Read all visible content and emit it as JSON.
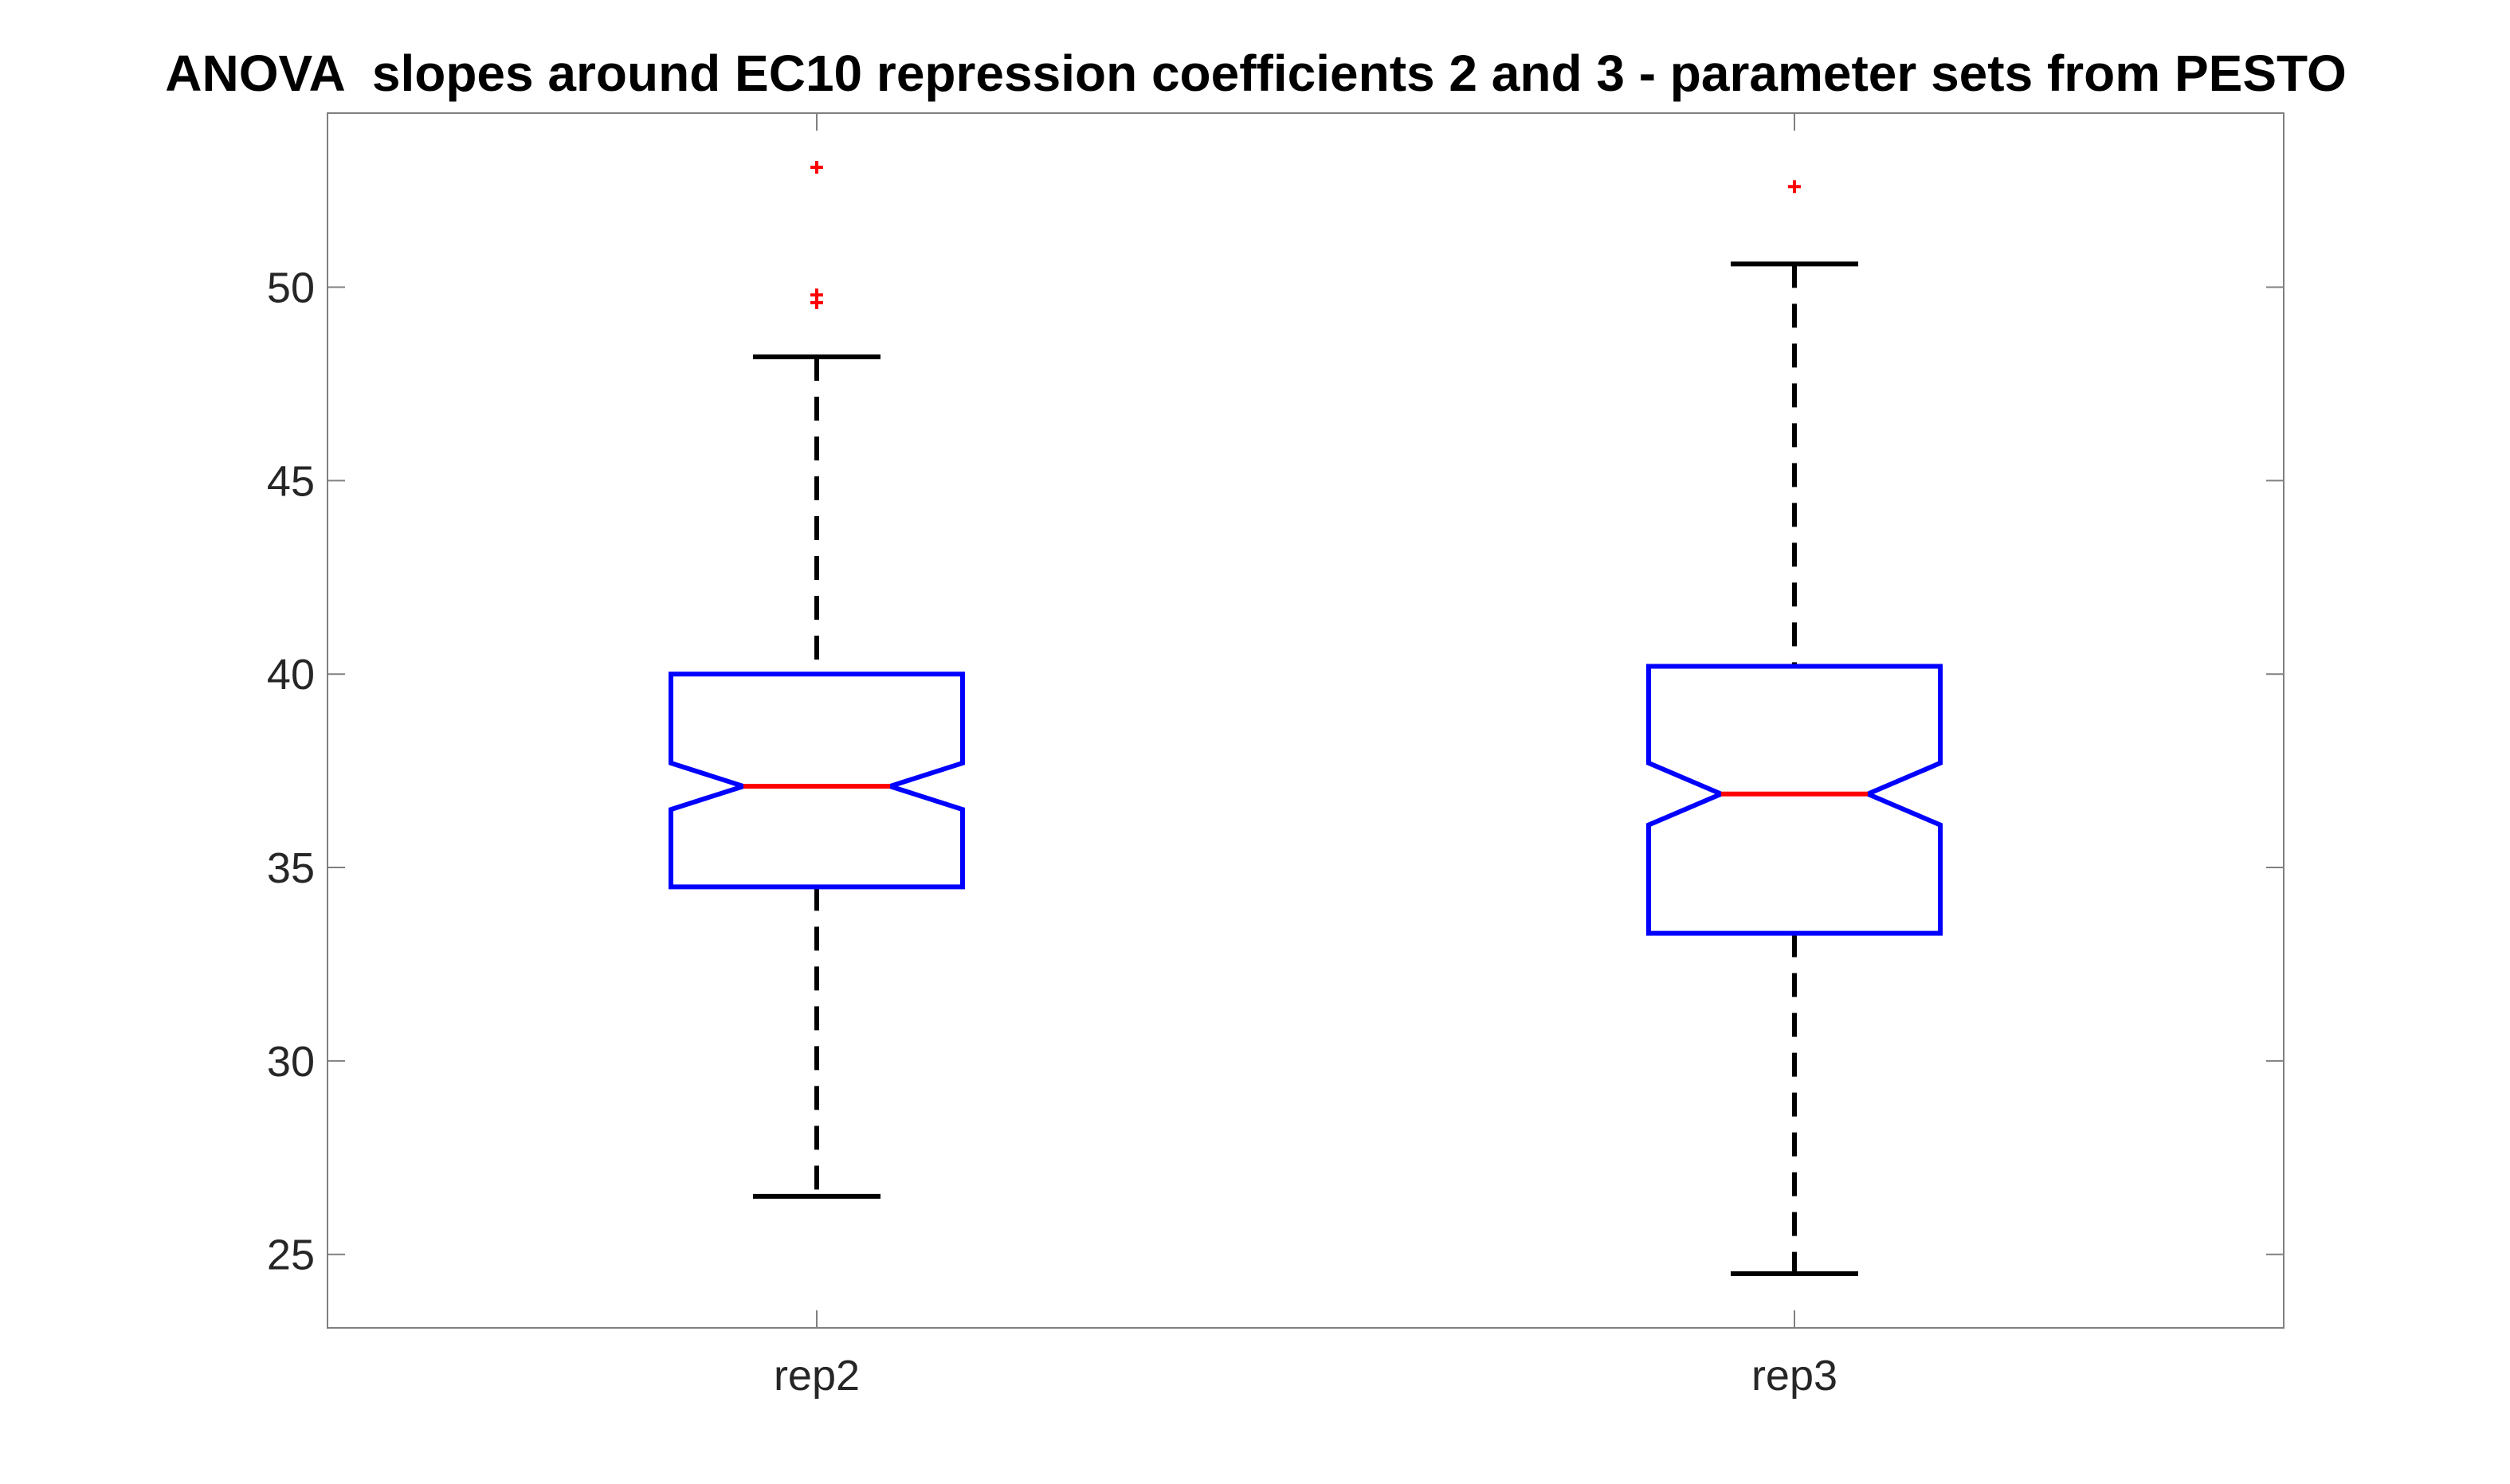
{
  "chart_data": {
    "type": "boxplot",
    "title": "ANOVA  slopes around EC10 repression coefficients 2 and 3 - parameter sets from PESTO",
    "xlabel": "",
    "ylabel": "",
    "ylim": [
      23.1,
      54.5
    ],
    "yticks": [
      25,
      30,
      35,
      40,
      45,
      50
    ],
    "categories": [
      "rep2",
      "rep3"
    ],
    "notched": true,
    "grid": false,
    "boxes": [
      {
        "category": "rep2",
        "lower_whisker": 26.5,
        "q1": 34.5,
        "notch_low": 36.5,
        "median": 37.1,
        "notch_high": 37.7,
        "q3": 40.0,
        "upper_whisker": 48.2,
        "outliers": [
          49.6,
          49.8,
          53.1
        ]
      },
      {
        "category": "rep3",
        "lower_whisker": 24.5,
        "q1": 33.3,
        "notch_low": 36.1,
        "median": 36.9,
        "notch_high": 37.7,
        "q3": 40.2,
        "upper_whisker": 50.6,
        "outliers": [
          52.6
        ]
      }
    ],
    "colors": {
      "box": "#0000ff",
      "median": "#ff0000",
      "whisker": "#000000",
      "outlier": "#ff0000",
      "axes": "#808080",
      "text": "#262626"
    }
  }
}
